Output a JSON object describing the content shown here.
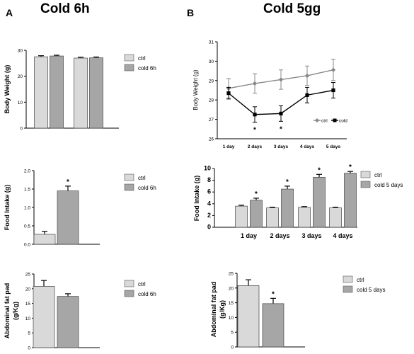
{
  "colors": {
    "ctrl": "#d9d9d9",
    "treated": "#a6a6a6",
    "ctrl_line": "#888888",
    "cold_line": "#000000",
    "axis": "#000000"
  },
  "panels": {
    "A": {
      "letter": "A",
      "title": "Cold 6h"
    },
    "B": {
      "letter": "B",
      "title": "Cold 5gg"
    }
  },
  "chart_data": [
    {
      "id": "A1",
      "type": "bar",
      "ylabel": "Body Weight (g)",
      "ylim": [
        0,
        30
      ],
      "yticks": [
        "0",
        "10",
        "20",
        "30"
      ],
      "categories": [
        "",
        ""
      ],
      "series": [
        {
          "name": "ctrl",
          "values": [
            27.5,
            27.0
          ],
          "errors": [
            0.4,
            0.3
          ]
        },
        {
          "name": "cold 6h",
          "values": [
            27.8,
            27.1
          ],
          "errors": [
            0.3,
            0.3
          ]
        }
      ],
      "legend": [
        "ctrl",
        "cold 6h"
      ],
      "annotations": []
    },
    {
      "id": "A2",
      "type": "bar",
      "ylabel": "Food Intake (g)",
      "ylim": [
        0,
        2.0
      ],
      "yticks": [
        "0.0",
        "0.5",
        "1.0",
        "1.5",
        "2.0"
      ],
      "categories": [
        ""
      ],
      "series": [
        {
          "name": "ctrl",
          "values": [
            0.27
          ],
          "errors": [
            0.08
          ]
        },
        {
          "name": "cold 6h",
          "values": [
            1.45
          ],
          "errors": [
            0.13
          ]
        }
      ],
      "legend": [
        "ctrl",
        "cold 6h"
      ],
      "annotations": [
        "*"
      ]
    },
    {
      "id": "A3",
      "type": "bar",
      "ylabel": [
        "Abdominal fat pad",
        "(g/Kg)"
      ],
      "ylim": [
        0,
        25
      ],
      "yticks": [
        "0",
        "5",
        "10",
        "15",
        "20",
        "25"
      ],
      "categories": [
        ""
      ],
      "series": [
        {
          "name": "ctrl",
          "values": [
            20.8
          ],
          "errors": [
            2.0
          ]
        },
        {
          "name": "cold 6h",
          "values": [
            17.4
          ],
          "errors": [
            0.9
          ]
        }
      ],
      "legend": [
        "ctrl",
        "cold 6h"
      ],
      "annotations": []
    },
    {
      "id": "B1",
      "type": "line",
      "ylabel": "Body Weight (g)",
      "ylim": [
        26,
        31
      ],
      "yticks": [
        "26",
        "27",
        "28",
        "29",
        "30",
        "31"
      ],
      "categories": [
        "1 day",
        "2 days",
        "3 days",
        "4 days",
        "5 days"
      ],
      "series": [
        {
          "name": "ctrl",
          "values": [
            28.6,
            28.85,
            29.05,
            29.25,
            29.55
          ],
          "errors": [
            0.5,
            0.5,
            0.5,
            0.5,
            0.55
          ]
        },
        {
          "name": "cold",
          "values": [
            28.35,
            27.25,
            27.3,
            28.25,
            28.5
          ],
          "errors": [
            0.3,
            0.4,
            0.4,
            0.4,
            0.4
          ]
        }
      ],
      "legend": [
        "ctrl",
        "cold"
      ],
      "annotations": [
        "*",
        "*"
      ]
    },
    {
      "id": "B2",
      "type": "bar",
      "ylabel": "Food Intake (g)",
      "ylim": [
        0,
        10
      ],
      "yticks": [
        "0",
        "2",
        "4",
        "6",
        "8",
        "10"
      ],
      "categories": [
        "1 day",
        "2 days",
        "3 days",
        "4 days"
      ],
      "series": [
        {
          "name": "ctrl",
          "values": [
            3.6,
            3.3,
            3.4,
            3.3
          ],
          "errors": [
            0.15,
            0.12,
            0.12,
            0.12
          ]
        },
        {
          "name": "cold 5 days",
          "values": [
            4.6,
            6.5,
            8.5,
            9.2
          ],
          "errors": [
            0.35,
            0.5,
            0.5,
            0.3
          ]
        }
      ],
      "legend": [
        "ctrl",
        "cold 5 days"
      ],
      "annotations": [
        "*",
        "*",
        "*",
        "*"
      ]
    },
    {
      "id": "B3",
      "type": "bar",
      "ylabel": [
        "Abdominal fat pad",
        "(g/Kg)"
      ],
      "ylim": [
        0,
        25
      ],
      "yticks": [
        "0",
        "5",
        "10",
        "15",
        "20",
        "25"
      ],
      "categories": [
        ""
      ],
      "series": [
        {
          "name": "ctrl",
          "values": [
            20.8
          ],
          "errors": [
            2.0
          ]
        },
        {
          "name": "cold 5 days",
          "values": [
            14.7
          ],
          "errors": [
            1.8
          ]
        }
      ],
      "legend": [
        "ctrl",
        "cold 5 days"
      ],
      "annotations": [
        "*"
      ]
    }
  ]
}
